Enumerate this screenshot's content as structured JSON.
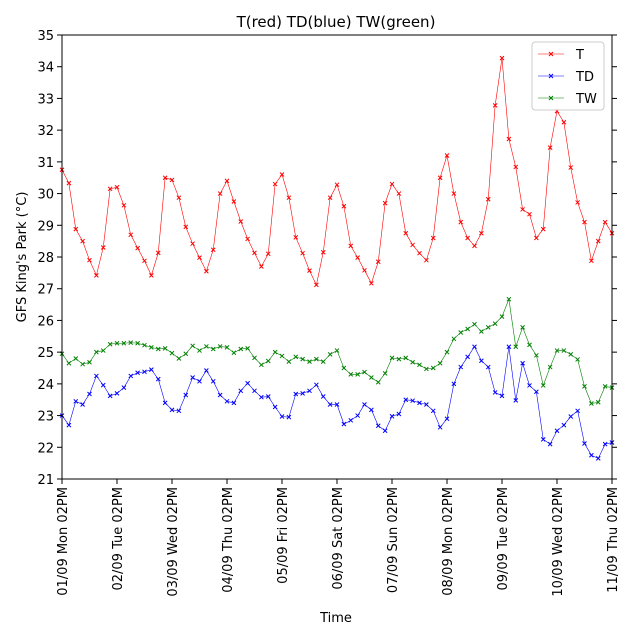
{
  "chart_data": {
    "type": "line",
    "title": "T(red) TD(blue) TW(green)",
    "xlabel": "Time",
    "ylabel": "GFS King's Park (°C)",
    "ylim": [
      21,
      35
    ],
    "yticks": [
      21,
      22,
      23,
      24,
      25,
      26,
      27,
      28,
      29,
      30,
      31,
      32,
      33,
      34,
      35
    ],
    "xlim": [
      0,
      10
    ],
    "xticks": [
      {
        "x": 0,
        "label": "01/09 Mon 02PM"
      },
      {
        "x": 1,
        "label": "02/09 Tue 02PM"
      },
      {
        "x": 2,
        "label": "03/09 Wed 02PM"
      },
      {
        "x": 3,
        "label": "04/09 Thu 02PM"
      },
      {
        "x": 4,
        "label": "05/09 Fri 02PM"
      },
      {
        "x": 5,
        "label": "06/09 Sat 02PM"
      },
      {
        "x": 6,
        "label": "07/09 Sun 02PM"
      },
      {
        "x": 7,
        "label": "08/09 Mon 02PM"
      },
      {
        "x": 8,
        "label": "09/09 Tue 02PM"
      },
      {
        "x": 9,
        "label": "10/09 Wed 02PM"
      },
      {
        "x": 10,
        "label": "11/09 Thu 02PM"
      }
    ],
    "x_step_days": 0.125,
    "grid": false,
    "legend_position": "top-right",
    "series": [
      {
        "name": "T",
        "color": "#ff0000",
        "values": [
          30.75,
          30.33,
          28.88,
          28.5,
          27.9,
          27.42,
          28.3,
          30.15,
          30.2,
          29.63,
          28.7,
          28.28,
          27.88,
          27.42,
          28.13,
          30.5,
          30.43,
          29.87,
          28.95,
          28.42,
          27.98,
          27.55,
          28.23,
          30.0,
          30.4,
          29.75,
          29.12,
          28.57,
          28.13,
          27.7,
          28.1,
          30.3,
          30.6,
          29.87,
          28.62,
          28.12,
          27.57,
          27.12,
          28.15,
          29.87,
          30.28,
          29.6,
          28.35,
          27.98,
          27.58,
          27.17,
          27.85,
          29.7,
          30.3,
          30.0,
          28.75,
          28.38,
          28.12,
          27.9,
          28.6,
          30.5,
          31.2,
          30.0,
          29.1,
          28.6,
          28.35,
          28.75,
          29.82,
          32.78,
          34.27,
          31.72,
          30.84,
          29.5,
          29.35,
          28.6,
          28.88,
          31.45,
          32.6,
          32.25,
          30.82,
          29.72,
          29.1,
          27.88,
          28.5,
          29.1,
          28.75
        ]
      },
      {
        "name": "TD",
        "color": "#0000ff",
        "values": [
          23.0,
          22.7,
          23.45,
          23.35,
          23.68,
          24.25,
          23.96,
          23.62,
          23.7,
          23.88,
          24.25,
          24.35,
          24.38,
          24.45,
          24.15,
          23.4,
          23.18,
          23.15,
          23.65,
          24.2,
          24.08,
          24.42,
          24.08,
          23.65,
          23.45,
          23.4,
          23.78,
          24.02,
          23.78,
          23.58,
          23.6,
          23.27,
          22.97,
          22.95,
          23.68,
          23.7,
          23.78,
          23.97,
          23.6,
          23.35,
          23.35,
          22.73,
          22.85,
          23.0,
          23.35,
          23.18,
          22.68,
          22.52,
          22.98,
          23.05,
          23.5,
          23.47,
          23.4,
          23.35,
          23.15,
          22.63,
          22.9,
          24.0,
          24.53,
          24.85,
          25.17,
          24.73,
          24.53,
          23.73,
          23.62,
          25.17,
          23.48,
          24.65,
          23.95,
          23.75,
          22.25,
          22.1,
          22.52,
          22.7,
          22.97,
          23.15,
          22.12,
          21.75,
          21.65,
          22.1,
          22.15
        ]
      },
      {
        "name": "TW",
        "color": "#008000",
        "values": [
          24.95,
          24.65,
          24.8,
          24.62,
          24.68,
          25.0,
          25.05,
          25.25,
          25.28,
          25.28,
          25.3,
          25.28,
          25.22,
          25.15,
          25.1,
          25.12,
          24.97,
          24.8,
          24.95,
          25.2,
          25.05,
          25.18,
          25.1,
          25.18,
          25.15,
          24.98,
          25.1,
          25.12,
          24.82,
          24.6,
          24.72,
          25.0,
          24.88,
          24.7,
          24.85,
          24.78,
          24.7,
          24.78,
          24.7,
          24.93,
          25.05,
          24.5,
          24.3,
          24.3,
          24.37,
          24.2,
          24.05,
          24.33,
          24.82,
          24.78,
          24.82,
          24.68,
          24.6,
          24.47,
          24.5,
          24.65,
          25.0,
          25.42,
          25.62,
          25.73,
          25.88,
          25.65,
          25.78,
          25.9,
          26.12,
          26.67,
          25.17,
          25.78,
          25.23,
          24.9,
          23.95,
          24.53,
          25.05,
          25.05,
          24.93,
          24.77,
          23.92,
          23.38,
          23.42,
          23.92,
          23.88
        ]
      }
    ]
  }
}
